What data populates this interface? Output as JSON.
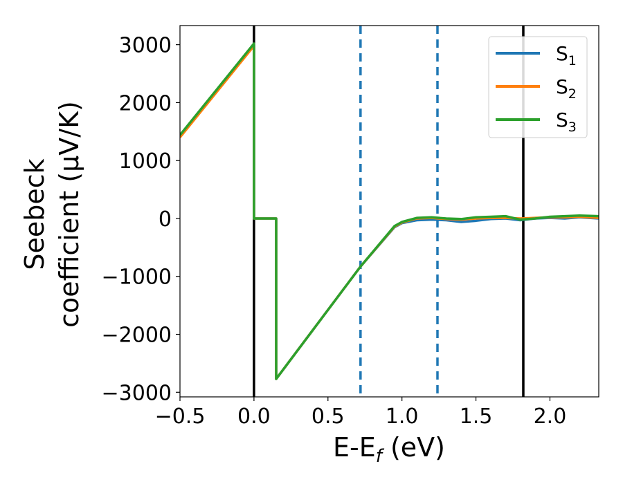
{
  "chart_data": {
    "type": "line",
    "xlabel": "E-E$_f$ (eV)",
    "xlabel_parts": {
      "main": "E-E",
      "sub": "f",
      "tail": " (eV)"
    },
    "ylabel_lines": [
      "Seebeck",
      "coefficient  (μV/K)"
    ],
    "xlim": [
      -0.5,
      2.33
    ],
    "ylim": [
      -3080,
      3330
    ],
    "xticks": [
      -0.5,
      0.0,
      0.5,
      1.0,
      1.5,
      2.0
    ],
    "xtick_labels": [
      "−0.5",
      "0.0",
      "0.5",
      "1.0",
      "1.5",
      "2.0"
    ],
    "yticks": [
      -3000,
      -2000,
      -1000,
      0,
      1000,
      2000,
      3000
    ],
    "ytick_labels": [
      "−3000",
      "−2000",
      "−1000",
      "0",
      "1000",
      "2000",
      "3000"
    ],
    "legend_position": "top-right",
    "series": [
      {
        "name": "S1",
        "name_main": "S",
        "name_sub": "1",
        "color": "#1f77b4",
        "x": [
          -0.5,
          0.0,
          0.0,
          0.15,
          0.15,
          0.72,
          0.95,
          1.0,
          1.1,
          1.2,
          1.3,
          1.4,
          1.5,
          1.6,
          1.7,
          1.8,
          1.9,
          2.0,
          2.1,
          2.2,
          2.33
        ],
        "y": [
          1420,
          3000,
          0,
          0,
          -2770,
          -830,
          -150,
          -80,
          -30,
          -20,
          -30,
          -60,
          -40,
          -10,
          0,
          -30,
          0,
          10,
          0,
          20,
          0
        ]
      },
      {
        "name": "S2",
        "name_main": "S",
        "name_sub": "2",
        "color": "#ff7f0e",
        "x": [
          -0.5,
          0.0,
          0.0,
          0.15,
          0.15,
          0.72,
          0.95,
          1.0,
          1.1,
          1.2,
          1.3,
          1.4,
          1.5,
          1.6,
          1.7,
          1.8,
          1.9,
          2.0,
          2.1,
          2.2,
          2.33
        ],
        "y": [
          1400,
          2980,
          0,
          0,
          -2770,
          -830,
          -140,
          -70,
          0,
          10,
          -10,
          -20,
          0,
          10,
          10,
          0,
          10,
          20,
          20,
          30,
          10
        ]
      },
      {
        "name": "S3",
        "name_main": "S",
        "name_sub": "3",
        "color": "#2ca02c",
        "x": [
          -0.5,
          0.0,
          0.0,
          0.15,
          0.15,
          0.72,
          0.95,
          1.0,
          1.1,
          1.2,
          1.3,
          1.4,
          1.5,
          1.6,
          1.7,
          1.8,
          1.9,
          2.0,
          2.1,
          2.2,
          2.33
        ],
        "y": [
          1440,
          3020,
          0,
          0,
          -2770,
          -830,
          -130,
          -60,
          10,
          20,
          0,
          -10,
          20,
          30,
          40,
          -20,
          0,
          30,
          40,
          50,
          40
        ]
      }
    ],
    "vertical_lines": [
      {
        "x": 0.0,
        "style": "solid",
        "color": "#000000"
      },
      {
        "x": 0.72,
        "style": "dashed",
        "color": "#1f77b4"
      },
      {
        "x": 1.24,
        "style": "dashed",
        "color": "#1f77b4"
      },
      {
        "x": 1.82,
        "style": "solid",
        "color": "#000000"
      }
    ]
  }
}
